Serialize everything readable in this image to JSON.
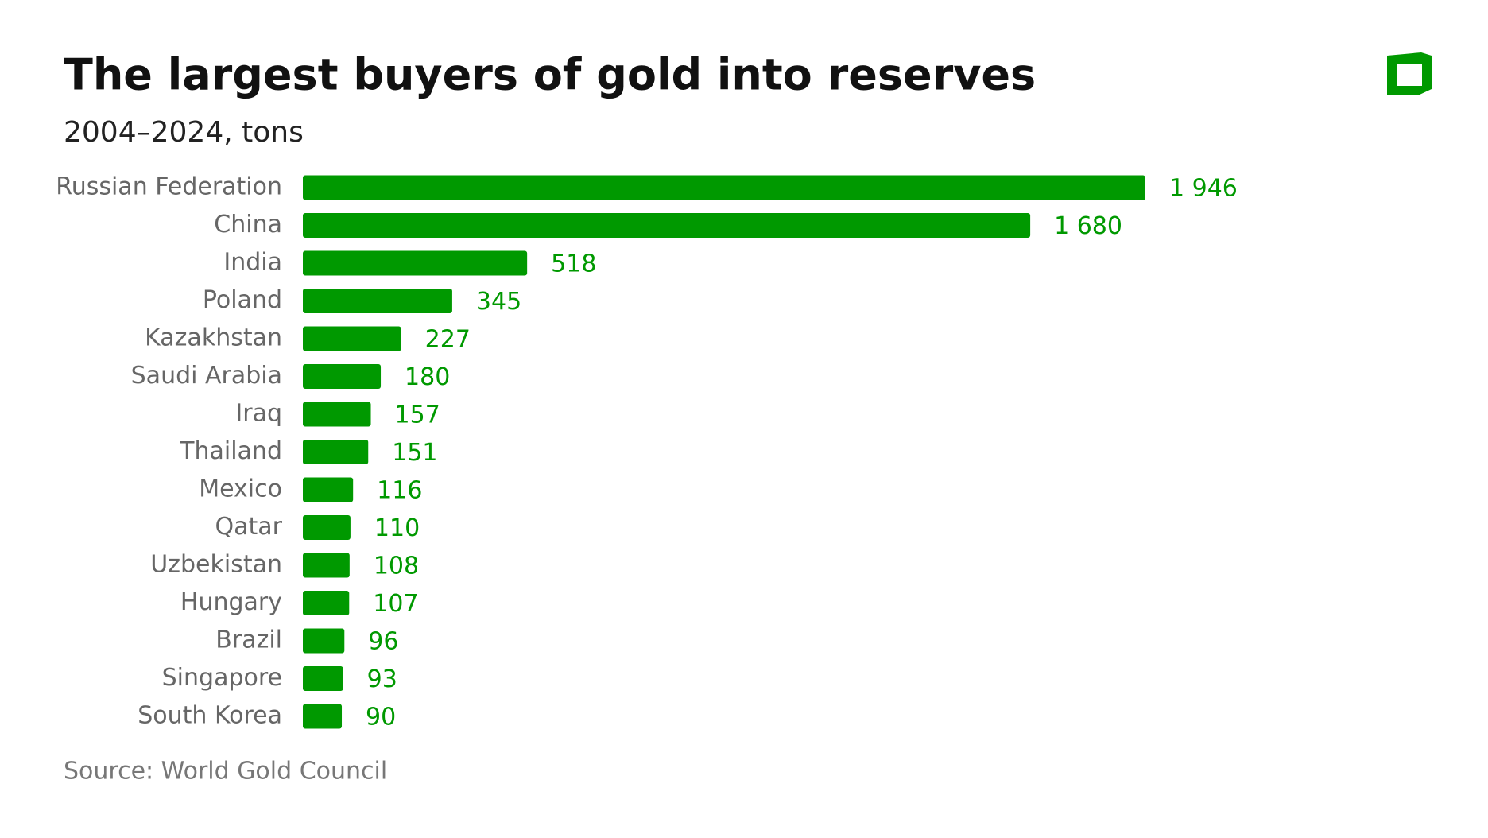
{
  "chart_data": {
    "type": "bar",
    "orientation": "horizontal",
    "title": "The largest buyers of gold into reserves",
    "subtitle": "2004–2024, tons",
    "source": "Source: World Gold Council",
    "categories": [
      "Russian Federation",
      "China",
      "India",
      "Poland",
      "Kazakhstan",
      "Saudi Arabia",
      "Iraq",
      "Thailand",
      "Mexico",
      "Qatar",
      "Uzbekistan",
      "Hungary",
      "Brazil",
      "Singapore",
      "South Korea"
    ],
    "values": [
      1946,
      1680,
      518,
      345,
      227,
      180,
      157,
      151,
      116,
      110,
      108,
      107,
      96,
      93,
      90
    ],
    "value_labels": [
      "1 946",
      "1 680",
      "518",
      "345",
      "227",
      "180",
      "157",
      "151",
      "116",
      "110",
      "108",
      "107",
      "96",
      "93",
      "90"
    ],
    "color": "#009900"
  }
}
